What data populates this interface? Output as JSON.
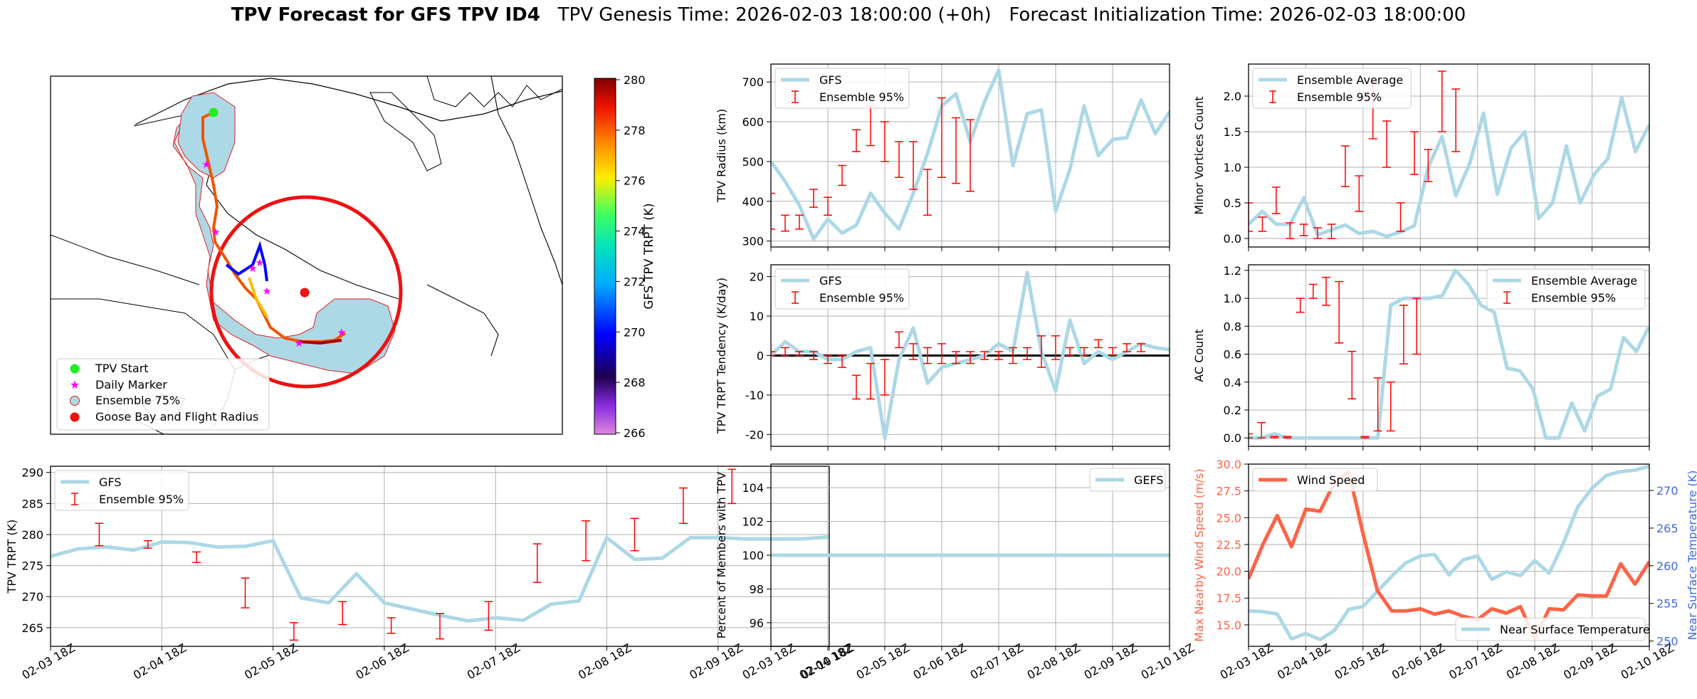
{
  "title": {
    "bold": "TPV Forecast for GFS TPV ID4",
    "genesis": "TPV Genesis Time: 2026-02-03 18:00:00 (+0h)",
    "init": "Forecast Initialization Time: 2026-02-03 18:00:00"
  },
  "colors": {
    "gfs": "#add8e6",
    "ensemble": "#ff0000",
    "wind": "#ff6347",
    "temp_axis": "#4169e1",
    "wind_axis": "#ff6347"
  },
  "time_ticks": [
    "02-03 18Z",
    "02-04 18Z",
    "02-05 18Z",
    "02-06 18Z",
    "02-07 18Z",
    "02-08 18Z",
    "02-09 18Z",
    "02-10 18Z"
  ],
  "map": {
    "colorbar_label": "GFS TPV TRPT (K)",
    "colorbar_ticks": [
      "280",
      "278",
      "276",
      "274",
      "272",
      "270",
      "268",
      "266"
    ],
    "legend": [
      "TPV Start",
      "Daily Marker",
      "Ensemble 75%",
      "Goose Bay and Flight Radius"
    ]
  },
  "chart_data": [
    {
      "id": "trpt",
      "type": "line",
      "ylabel": "TPV TRPT (K)",
      "ylim": [
        262,
        291
      ],
      "yticks": [
        265,
        270,
        275,
        280,
        285,
        290
      ],
      "legend": [
        "GFS",
        "Ensemble 95%"
      ],
      "legend_pos": "top-left",
      "series": [
        {
          "name": "GFS",
          "values": [
            276.5,
            277.7,
            278.0,
            277.5,
            278.8,
            278.7,
            278.0,
            278.1,
            279.0,
            269.8,
            269.0,
            273.7,
            269.0,
            268.0,
            267.0,
            266.1,
            266.6,
            266.2,
            268.8,
            269.3,
            279.5,
            276.0,
            276.2,
            279.5,
            279.5,
            279.3,
            279.3,
            279.3,
            279.6
          ]
        }
      ],
      "errorbars": [
        [
          1.75,
          278.2,
          281.8
        ],
        [
          3.5,
          277.8,
          279.0
        ],
        [
          5.25,
          275.5,
          277.2
        ],
        [
          7.0,
          268.2,
          273.0
        ],
        [
          8.75,
          263.0,
          265.8
        ],
        [
          10.5,
          265.5,
          269.2
        ],
        [
          12.25,
          264.1,
          266.6
        ],
        [
          14.0,
          263.2,
          267.3
        ],
        [
          15.75,
          264.6,
          269.2
        ],
        [
          17.5,
          272.3,
          278.5
        ],
        [
          19.25,
          275.8,
          282.2
        ],
        [
          21.0,
          277.4,
          282.6
        ],
        [
          22.75,
          281.8,
          287.5
        ],
        [
          24.5,
          285.0,
          290.5
        ]
      ]
    },
    {
      "id": "radius",
      "type": "line",
      "ylabel": "TPV Radius (km)",
      "ylim": [
        285,
        745
      ],
      "yticks": [
        300,
        400,
        500,
        600,
        700
      ],
      "legend": [
        "GFS",
        "Ensemble 95%"
      ],
      "legend_pos": "top-left",
      "series": [
        {
          "name": "GFS",
          "values": [
            500,
            450,
            390,
            305,
            355,
            320,
            340,
            420,
            370,
            330,
            420,
            520,
            640,
            670,
            550,
            650,
            730,
            490,
            620,
            630,
            375,
            480,
            640,
            515,
            555,
            560,
            655,
            570,
            625
          ]
        }
      ],
      "errorbars": [
        [
          0,
          330,
          420
        ],
        [
          1,
          325,
          365
        ],
        [
          2,
          330,
          365
        ],
        [
          3,
          385,
          430
        ],
        [
          4,
          365,
          410
        ],
        [
          5,
          440,
          490
        ],
        [
          6,
          525,
          580
        ],
        [
          7,
          540,
          640
        ],
        [
          8,
          500,
          600
        ],
        [
          9,
          460,
          550
        ],
        [
          10,
          430,
          550
        ],
        [
          11,
          365,
          480
        ],
        [
          12,
          460,
          660
        ],
        [
          13,
          445,
          610
        ],
        [
          14,
          425,
          605
        ]
      ]
    },
    {
      "id": "tendency",
      "type": "line",
      "ylabel": "TPV TRPT Tendency (K/day)",
      "ylim": [
        -23,
        23
      ],
      "yticks": [
        -20,
        -10,
        0,
        10,
        20
      ],
      "zero_line": true,
      "legend": [
        "GFS",
        "Ensemble 95%"
      ],
      "legend_pos": "top-left",
      "series": [
        {
          "name": "GFS",
          "values": [
            0,
            3.5,
            1,
            1,
            -1,
            -1,
            1,
            2,
            -21,
            -1,
            7,
            -7,
            -3,
            -2,
            -1,
            0,
            3,
            1,
            21,
            1,
            -9,
            9,
            -2,
            1,
            -1,
            1,
            3,
            2,
            1.5
          ]
        }
      ],
      "errorbars": [
        [
          0,
          0,
          1
        ],
        [
          1,
          0,
          2
        ],
        [
          2,
          0,
          1
        ],
        [
          3,
          -1,
          1
        ],
        [
          4,
          -2,
          0
        ],
        [
          5,
          -3,
          0
        ],
        [
          6,
          -11,
          -5
        ],
        [
          7,
          -11,
          -2
        ],
        [
          8,
          -10,
          -1
        ],
        [
          9,
          2,
          6
        ],
        [
          10,
          -1,
          3
        ],
        [
          11,
          -2,
          2
        ],
        [
          12,
          -2,
          3
        ],
        [
          13,
          -2,
          1
        ],
        [
          14,
          -2,
          1
        ],
        [
          15,
          -1,
          1
        ],
        [
          16,
          -1,
          1
        ],
        [
          17,
          -2,
          2
        ],
        [
          18,
          -1,
          2
        ],
        [
          19,
          -3,
          5
        ],
        [
          20,
          -1,
          5
        ],
        [
          21,
          0,
          2
        ],
        [
          22,
          0,
          2
        ],
        [
          23,
          2,
          4
        ],
        [
          24,
          0,
          2
        ],
        [
          25,
          1,
          3
        ],
        [
          26,
          1,
          3
        ]
      ]
    },
    {
      "id": "percent",
      "type": "line",
      "ylabel": "Percent of Members with TPV",
      "ylim": [
        94.6,
        105.4
      ],
      "yticks": [
        96,
        98,
        100,
        102,
        104
      ],
      "legend": [
        "GEFS"
      ],
      "legend_pos": "top-right",
      "series": [
        {
          "name": "GEFS",
          "values": [
            100,
            100,
            100,
            100,
            100,
            100,
            100,
            100,
            100,
            100,
            100,
            100,
            100,
            100,
            100,
            100,
            100,
            100,
            100,
            100,
            100,
            100,
            100,
            100,
            100,
            100,
            100,
            100,
            100
          ]
        }
      ]
    },
    {
      "id": "minor",
      "type": "line",
      "ylabel": "Minor Vortices Count",
      "ylim": [
        -0.12,
        2.45
      ],
      "yticks": [
        0.0,
        0.5,
        1.0,
        1.5,
        2.0
      ],
      "legend": [
        "Ensemble Average",
        "Ensemble 95%"
      ],
      "legend_pos": "top-left",
      "series": [
        {
          "name": "Ensemble Average",
          "values": [
            0.2,
            0.38,
            0.2,
            0.2,
            0.57,
            0.05,
            0.12,
            0.19,
            0.07,
            0.1,
            0.03,
            0.09,
            0.18,
            1.0,
            1.43,
            0.6,
            1.05,
            1.76,
            0.62,
            1.27,
            1.5,
            0.28,
            0.5,
            1.3,
            0.5,
            0.9,
            1.12,
            1.98,
            1.22,
            1.6
          ]
        }
      ],
      "errorbars": [
        [
          0,
          0.1,
          0.5
        ],
        [
          1,
          0.1,
          0.3
        ],
        [
          2,
          0.35,
          0.72
        ],
        [
          3,
          0,
          0.22
        ],
        [
          4,
          0.04,
          0.2
        ],
        [
          5,
          0,
          0.15
        ],
        [
          6,
          0,
          0.2
        ],
        [
          7,
          0.73,
          1.3
        ],
        [
          8,
          0.38,
          0.88
        ],
        [
          9,
          1.4,
          2.2
        ],
        [
          10,
          1.0,
          1.65
        ],
        [
          11,
          0.1,
          0.5
        ],
        [
          12,
          0.9,
          1.5
        ],
        [
          13,
          0.8,
          1.25
        ],
        [
          14,
          1.5,
          2.35
        ],
        [
          15,
          1.22,
          2.1
        ]
      ]
    },
    {
      "id": "ac",
      "type": "line",
      "ylabel": "AC Count",
      "ylim": [
        -0.06,
        1.24
      ],
      "yticks": [
        0.0,
        0.2,
        0.4,
        0.6,
        0.8,
        1.0,
        1.2
      ],
      "legend": [
        "Ensemble Average",
        "Ensemble 95%"
      ],
      "legend_pos": "top-right",
      "series": [
        {
          "name": "Ensemble Average",
          "values": [
            0,
            0,
            0.03,
            0,
            0,
            0,
            0,
            0,
            0,
            0,
            0,
            0.95,
            1.0,
            1.0,
            1.0,
            1.02,
            1.2,
            1.1,
            0.95,
            0.9,
            0.5,
            0.48,
            0.35,
            0,
            0,
            0.25,
            0.05,
            0.3,
            0.35,
            0.72,
            0.62,
            0.8
          ]
        }
      ],
      "errorbars": [
        [
          0,
          0,
          0.03
        ],
        [
          1,
          0,
          0.11
        ],
        [
          2,
          0,
          0.01
        ],
        [
          3,
          0,
          0.01
        ],
        [
          4,
          0.9,
          1.0
        ],
        [
          5,
          1.0,
          1.1
        ],
        [
          6,
          0.95,
          1.15
        ],
        [
          7,
          0.68,
          1.12
        ],
        [
          8,
          0.28,
          0.62
        ],
        [
          9,
          0,
          0.01
        ],
        [
          10,
          0.05,
          0.43
        ],
        [
          11,
          0.05,
          0.4
        ],
        [
          12,
          0.53,
          0.95
        ],
        [
          13,
          0.6,
          1.0
        ]
      ]
    },
    {
      "id": "wind",
      "type": "line",
      "ylabel": "Max Nearby Wind Speed (m/s)",
      "y2label": "Near Surface Temperature (K)",
      "ylim": [
        13.0,
        30.0
      ],
      "yticks": [
        15.0,
        17.5,
        20.0,
        22.5,
        25.0,
        27.5,
        30.0
      ],
      "y2lim": [
        249.3,
        273.5
      ],
      "y2ticks": [
        250,
        255,
        260,
        265,
        270
      ],
      "legend": [
        "Wind Speed",
        "Near Surface Temperature"
      ],
      "legend_pos": "top-left / bottom-right",
      "series": [
        {
          "name": "Wind Speed",
          "values": [
            19.3,
            22.5,
            25.2,
            22.3,
            25.8,
            25.6,
            28.3,
            29.3,
            23.5,
            18.2,
            16.3,
            16.3,
            16.5,
            16.0,
            16.3,
            15.8,
            15.5,
            16.5,
            16.1,
            16.7,
            13.7,
            16.5,
            16.4,
            17.8,
            17.7,
            17.7,
            20.7,
            18.8,
            20.9
          ]
        },
        {
          "name": "Near Surface Temperature",
          "axis": "y2",
          "values": [
            254.0,
            253.9,
            253.6,
            250.3,
            251.0,
            250.2,
            251.4,
            254.2,
            254.6,
            256.6,
            258.6,
            260.4,
            261.3,
            261.5,
            258.8,
            260.8,
            261.3,
            258.2,
            259.2,
            258.7,
            260.7,
            259.0,
            263.0,
            267.8,
            270.3,
            272.0,
            272.5,
            272.7,
            273.2
          ]
        }
      ]
    }
  ]
}
